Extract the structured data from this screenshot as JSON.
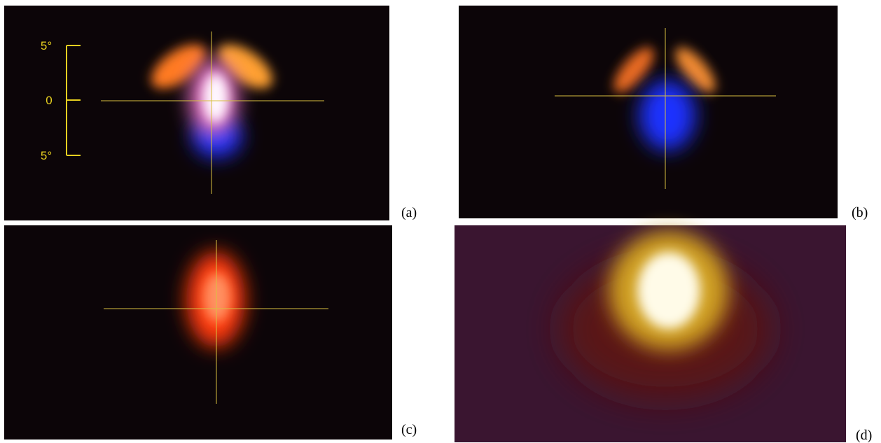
{
  "panels": [
    {
      "label": "(a)"
    },
    {
      "label": "(b)"
    },
    {
      "label": "(c)"
    },
    {
      "label": "(d)"
    }
  ],
  "scale": {
    "top": "5°",
    "middle": "0",
    "bottom": "5°"
  }
}
